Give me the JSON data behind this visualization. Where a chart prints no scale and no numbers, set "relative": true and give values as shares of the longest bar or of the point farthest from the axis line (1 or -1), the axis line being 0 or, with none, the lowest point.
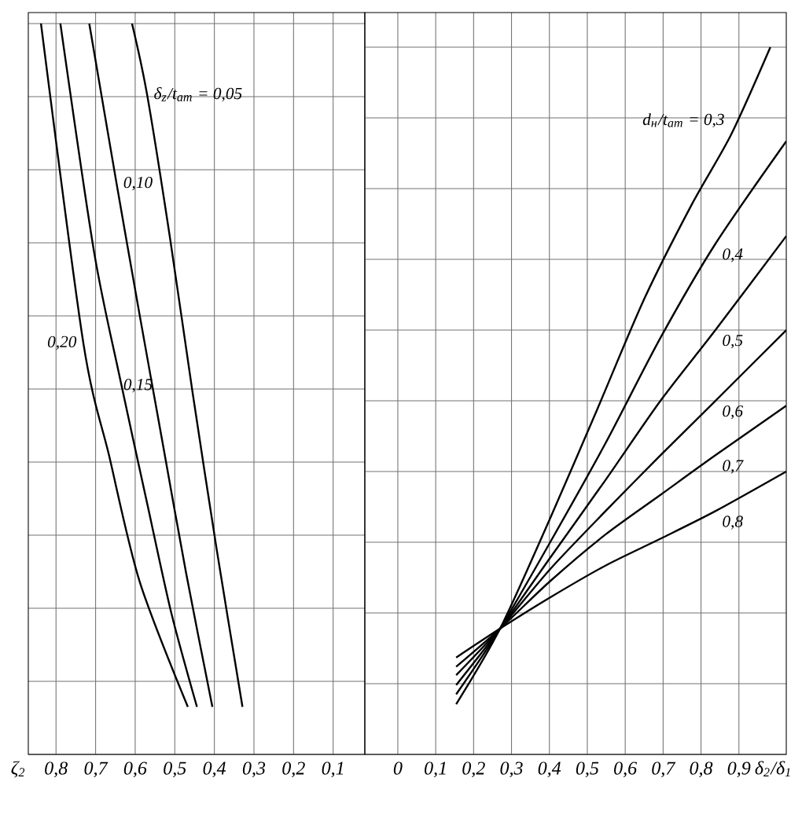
{
  "chart_data": [
    {
      "type": "line",
      "relative": true,
      "grid": true,
      "xlabel": "ζ$_{2}$",
      "xlim": [
        0.87,
        0.02
      ],
      "xticks": [
        {
          "value": 0.8,
          "label": "0,8"
        },
        {
          "value": 0.7,
          "label": "0,7"
        },
        {
          "value": 0.6,
          "label": "0,6"
        },
        {
          "value": 0.5,
          "label": "0,5"
        },
        {
          "value": 0.4,
          "label": "0,4"
        },
        {
          "value": 0.3,
          "label": "0,3"
        },
        {
          "value": 0.2,
          "label": "0,2"
        },
        {
          "value": 0.1,
          "label": "0,1"
        }
      ],
      "series": [
        {
          "name": "δ$_{z}$/t$_{ат}$ = 0,05",
          "color": "#000000",
          "x": [
            0.608,
            0.57,
            0.513,
            0.455,
            0.394,
            0.329
          ],
          "values": [
            1.0,
            0.903,
            0.71,
            0.495,
            0.28,
            0.065
          ]
        },
        {
          "name": "0,10",
          "color": "#000000",
          "x": [
            0.716,
            0.647,
            0.589,
            0.532,
            0.471,
            0.405
          ],
          "values": [
            1.0,
            0.781,
            0.602,
            0.43,
            0.247,
            0.065
          ]
        },
        {
          "name": "0,15",
          "color": "#000000",
          "x": [
            0.789,
            0.704,
            0.639,
            0.57,
            0.509,
            0.444
          ],
          "values": [
            1.0,
            0.688,
            0.516,
            0.344,
            0.194,
            0.065
          ]
        },
        {
          "name": "0,20",
          "color": "#000000",
          "x": [
            0.838,
            0.731,
            0.666,
            0.589,
            0.467
          ],
          "values": [
            1.0,
            0.563,
            0.409,
            0.237,
            0.065
          ]
        }
      ]
    },
    {
      "type": "line",
      "relative": true,
      "grid": true,
      "xlabel": "δ$_{2}$/δ$_{1}$",
      "xlim": [
        -0.087,
        1.025
      ],
      "xticks": [
        0,
        {
          "value": 0.1,
          "label": "0,1"
        },
        {
          "value": 0.2,
          "label": "0,2"
        },
        {
          "value": 0.3,
          "label": "0,3"
        },
        {
          "value": 0.4,
          "label": "0,4"
        },
        {
          "value": 0.5,
          "label": "0,5"
        },
        {
          "value": 0.6,
          "label": "0,6"
        },
        {
          "value": 0.7,
          "label": "0,7"
        },
        {
          "value": 0.8,
          "label": "0,8"
        },
        {
          "value": 0.9,
          "label": "0,9"
        }
      ],
      "series": [
        {
          "name": "d$_{н}$/t$_{ат}$ = 0,3",
          "color": "#000000",
          "x": [
            0.154,
            0.27,
            0.402,
            0.527,
            0.651,
            0.776,
            0.88,
            0.983
          ],
          "values": [
            0.071,
            0.178,
            0.334,
            0.489,
            0.645,
            0.778,
            0.877,
            1.0
          ]
        },
        {
          "name": "0,4",
          "color": "#000000",
          "x": [
            0.154,
            0.27,
            0.402,
            0.548,
            0.693,
            0.838,
            1.025
          ],
          "values": [
            0.085,
            0.178,
            0.3,
            0.44,
            0.589,
            0.722,
            0.867
          ]
        },
        {
          "name": "0,5",
          "color": "#000000",
          "x": [
            0.154,
            0.27,
            0.402,
            0.548,
            0.693,
            0.838,
            1.025
          ],
          "values": [
            0.098,
            0.178,
            0.278,
            0.388,
            0.5,
            0.6,
            0.733
          ]
        },
        {
          "name": "0,6",
          "color": "#000000",
          "x": [
            0.154,
            0.27,
            0.402,
            0.548,
            0.693,
            0.838,
            1.025
          ],
          "values": [
            0.112,
            0.178,
            0.262,
            0.344,
            0.423,
            0.5,
            0.6
          ]
        },
        {
          "name": "0,7",
          "color": "#000000",
          "x": [
            0.154,
            0.27,
            0.402,
            0.548,
            0.693,
            0.838,
            1.025
          ],
          "values": [
            0.124,
            0.178,
            0.245,
            0.311,
            0.367,
            0.423,
            0.493
          ]
        },
        {
          "name": "0,8",
          "color": "#000000",
          "x": [
            0.154,
            0.27,
            0.402,
            0.548,
            0.693,
            0.838,
            1.025
          ],
          "values": [
            0.137,
            0.178,
            0.222,
            0.267,
            0.305,
            0.344,
            0.4
          ]
        }
      ]
    }
  ]
}
